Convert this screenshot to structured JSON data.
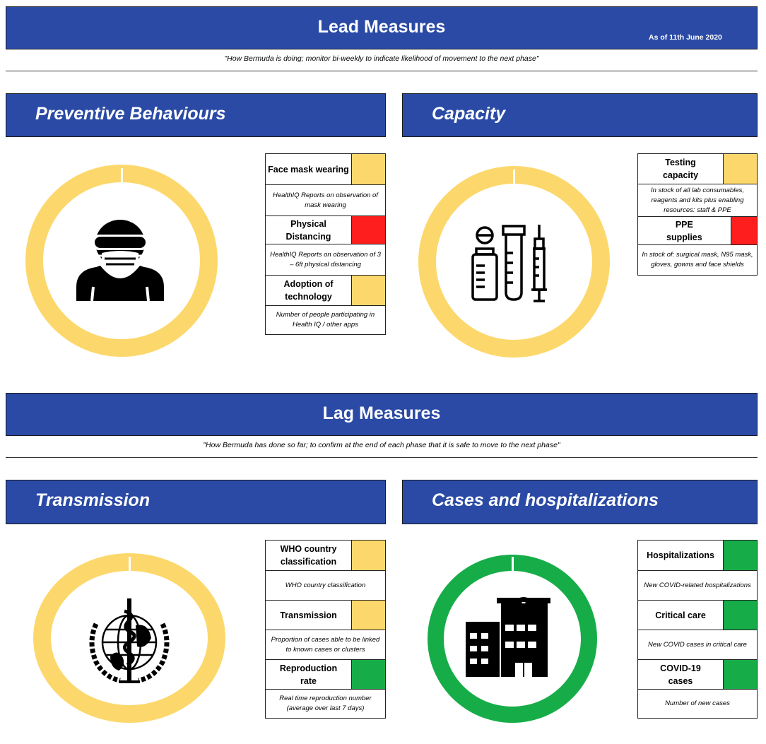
{
  "lead": {
    "title": "Lead Measures",
    "as_of": "As of 11th June 2020",
    "quote": "\"How Bermuda is doing; monitor bi-weekly to indicate likelihood of movement to the next phase\""
  },
  "lag": {
    "title": "Lag Measures",
    "quote": "\"How Bermuda has done so far; to confirm at the end of each phase that it is safe to move to the next phase\""
  },
  "colors": {
    "navy": "#2a4aa5",
    "amber": "#fcd86c",
    "red": "#ff1e1e",
    "green": "#16ad48"
  },
  "preventive": {
    "title": "Preventive Behaviours",
    "icon": "masked-person-icon",
    "ring_color": "#fcd86c",
    "measures": [
      {
        "label": "Face mask wearing",
        "status_color": "#fcd86c",
        "description": "HealthIQ Reports on observation of mask wearing"
      },
      {
        "label": "Physical Distancing",
        "status_color": "#ff1e1e",
        "description": "HealthIQ Reports on observation of 3 – 6ft physical distancing"
      },
      {
        "label": "Adoption of technology",
        "status_color": "#fcd86c",
        "description": "Number of people participating in Health IQ / other apps"
      }
    ]
  },
  "capacity": {
    "title": "Capacity",
    "icon": "lab-supplies-icon",
    "ring_color": "#fcd86c",
    "measures": [
      {
        "label": "Testing capacity",
        "status_color": "#fcd86c",
        "description": "In stock of all lab consumables, reagents and kits plus enabling resources: staff & PPE"
      },
      {
        "label": "PPE supplies",
        "status_color": "#ff1e1e",
        "description": "In stock of: surgical mask, N95 mask, gloves, gowns and face shields"
      }
    ]
  },
  "transmission": {
    "title": "Transmission",
    "icon": "who-emblem-icon",
    "ring_color": "#fcd86c",
    "measures": [
      {
        "label": "WHO country classification",
        "status_color": "#fcd86c",
        "description": "WHO country classification"
      },
      {
        "label": "Transmission",
        "status_color": "#fcd86c",
        "description": "Proportion of cases able to be linked to known cases or clusters"
      },
      {
        "label": "Reproduction rate",
        "status_color": "#16ad48",
        "description": "Real time reproduction number (average over last 7 days)"
      }
    ]
  },
  "cases": {
    "title": "Cases and hospitalizations",
    "icon": "hospital-icon",
    "ring_color": "#16ad48",
    "measures": [
      {
        "label": "Hospitalizations",
        "status_color": "#16ad48",
        "description": "New COVID-related hospitalizations"
      },
      {
        "label": "Critical care",
        "status_color": "#16ad48",
        "description": "New COVID cases in critical care"
      },
      {
        "label": "COVID-19 cases",
        "status_color": "#16ad48",
        "description": "Number of new cases"
      }
    ]
  }
}
